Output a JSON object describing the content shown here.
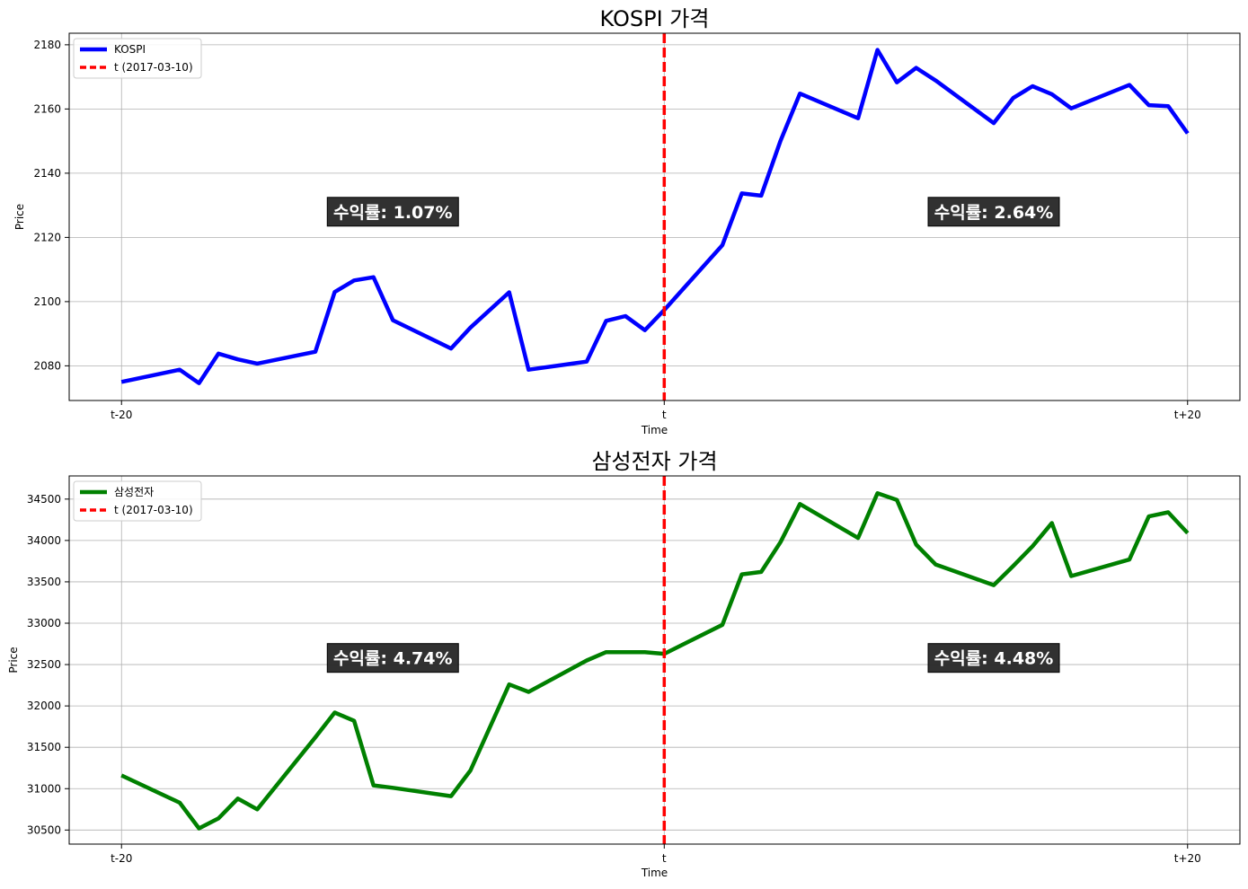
{
  "chart_data": [
    {
      "type": "line",
      "title": "KOSPI 가격",
      "xlabel": "Time",
      "ylabel": "Price",
      "xticks": [
        {
          "x": 0,
          "label": "t-20"
        },
        {
          "x": 28,
          "label": "t"
        },
        {
          "x": 55,
          "label": "t+20"
        }
      ],
      "xlim": [
        -2.7,
        57.7
      ],
      "ylim": [
        2069.2,
        2183.6
      ],
      "yticks": [
        2080,
        2100,
        2120,
        2140,
        2160,
        2180
      ],
      "grid": true,
      "legend_position": "upper left",
      "series": [
        {
          "name": "KOSPI",
          "color": "#0000ff",
          "line_style": "solid",
          "x": [
            0,
            3,
            4,
            5,
            6,
            7,
            10,
            11,
            12,
            13,
            14,
            17,
            18,
            20,
            21,
            24,
            25,
            26,
            27,
            28,
            31,
            32,
            33,
            34,
            35,
            38,
            39,
            40,
            41,
            42,
            45,
            46,
            47,
            48,
            49,
            52,
            53,
            54,
            55
          ],
          "y": [
            2075.0,
            2078.8,
            2074.6,
            2083.8,
            2082.0,
            2080.7,
            2084.4,
            2103.0,
            2106.6,
            2107.6,
            2094.2,
            2085.4,
            2091.9,
            2102.9,
            2078.8,
            2081.3,
            2094.0,
            2095.5,
            2091.1,
            2097.4,
            2117.6,
            2133.7,
            2133.0,
            2150.1,
            2164.8,
            2157.1,
            2178.4,
            2168.3,
            2172.8,
            2168.9,
            2155.6,
            2163.4,
            2167.1,
            2164.6,
            2160.2,
            2167.5,
            2161.2,
            2160.9,
            2152.4
          ]
        },
        {
          "name": "t (2017-03-10)",
          "color": "#ff0000",
          "line_style": "dashed",
          "x_value": 28
        }
      ],
      "annotations": [
        {
          "text": "수익률: 1.07%",
          "x": 14,
          "y": 2128
        },
        {
          "text": "수익률: 2.64%",
          "x": 45,
          "y": 2128
        }
      ]
    },
    {
      "type": "line",
      "title": "삼성전자 가격",
      "xlabel": "Time",
      "ylabel": "Price",
      "xticks": [
        {
          "x": 0,
          "label": "t-20"
        },
        {
          "x": 28,
          "label": "t"
        },
        {
          "x": 55,
          "label": "t+20"
        }
      ],
      "xlim": [
        -2.7,
        57.7
      ],
      "ylim": [
        30330,
        34780
      ],
      "yticks": [
        30500,
        31000,
        31500,
        32000,
        32500,
        33000,
        33500,
        34000,
        34500
      ],
      "grid": true,
      "legend_position": "upper left",
      "series": [
        {
          "name": "삼성전자",
          "color": "#008000",
          "line_style": "solid",
          "x": [
            0,
            3,
            4,
            5,
            6,
            7,
            10,
            11,
            12,
            13,
            14,
            17,
            18,
            20,
            21,
            24,
            25,
            26,
            27,
            28,
            31,
            32,
            33,
            34,
            35,
            38,
            39,
            40,
            41,
            42,
            45,
            46,
            47,
            48,
            49,
            52,
            53,
            54,
            55
          ],
          "y": [
            31160,
            30830,
            30520,
            30640,
            30880,
            30750,
            31620,
            31920,
            31820,
            31040,
            31010,
            30910,
            31220,
            32260,
            32170,
            32550,
            32650,
            32650,
            32650,
            32630,
            32980,
            33590,
            33620,
            33980,
            34440,
            34030,
            34570,
            34490,
            33950,
            33710,
            33460,
            33690,
            33930,
            34210,
            33570,
            33770,
            34290,
            34340,
            34090
          ]
        },
        {
          "name": "t (2017-03-10)",
          "color": "#ff0000",
          "line_style": "dashed",
          "x_value": 28
        }
      ],
      "annotations": [
        {
          "text": "수익률: 4.74%",
          "x": 14,
          "y": 32580
        },
        {
          "text": "수익률: 4.48%",
          "x": 45,
          "y": 32580
        }
      ]
    }
  ]
}
